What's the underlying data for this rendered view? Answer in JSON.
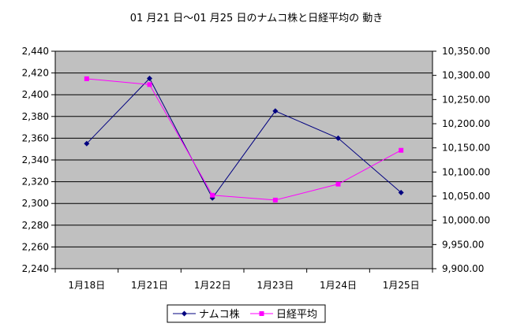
{
  "chart_data": {
    "type": "line",
    "title": "01 月21 日～01 月25 日のナムコ株と日経平均の 動き",
    "categories": [
      "1月18日",
      "1月21日",
      "1月22日",
      "1月23日",
      "1月24日",
      "1月25日"
    ],
    "y_left": {
      "ylim": [
        2240,
        2440
      ],
      "ticks": [
        2240,
        2260,
        2280,
        2300,
        2320,
        2340,
        2360,
        2380,
        2400,
        2420,
        2440
      ],
      "tick_labels": [
        "2,240",
        "2,260",
        "2,280",
        "2,300",
        "2,320",
        "2,340",
        "2,360",
        "2,380",
        "2,400",
        "2,420",
        "2,440"
      ]
    },
    "y_right": {
      "ylim": [
        9900,
        10350
      ],
      "ticks": [
        9900,
        9950,
        10000,
        10050,
        10100,
        10150,
        10200,
        10250,
        10300,
        10350
      ],
      "tick_labels": [
        "9,900.00",
        "9,950.00",
        "10,000.00",
        "10,050.00",
        "10,100.00",
        "10,150.00",
        "10,200.00",
        "10,250.00",
        "10,300.00",
        "10,350.00"
      ]
    },
    "series": [
      {
        "name": "ナムコ株",
        "axis": "left",
        "color": "#000080",
        "marker": "diamond",
        "values": [
          2355,
          2415,
          2305,
          2385,
          2360,
          2310
        ]
      },
      {
        "name": "日経平均",
        "axis": "right",
        "color": "#ff00ff",
        "marker": "square",
        "values": [
          10293,
          10281,
          10052,
          10042,
          10075,
          10145
        ]
      }
    ],
    "grid": true,
    "plot_background": "#c0c0c0",
    "legend_position": "bottom"
  }
}
